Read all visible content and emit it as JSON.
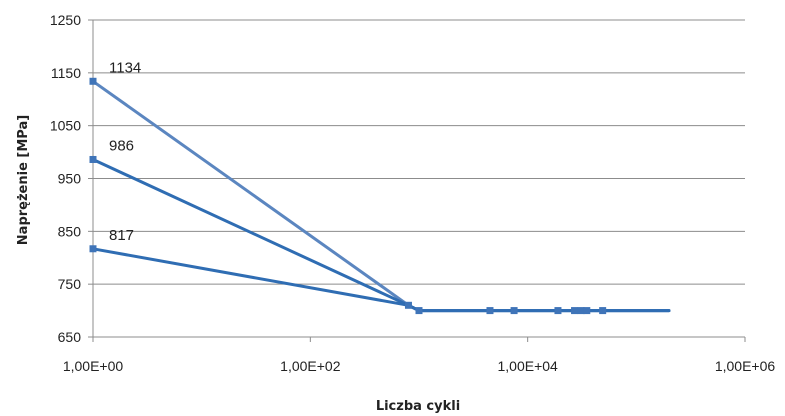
{
  "chart_data": {
    "type": "line",
    "title": "",
    "xlabel": "Liczba cykli",
    "ylabel": "Naprężenie [MPa]",
    "xscale": "log",
    "xlim": [
      1,
      1000000
    ],
    "ylim": [
      650,
      1250
    ],
    "xticks": [
      1,
      100,
      10000,
      1000000
    ],
    "xtick_labels": [
      "1,00E+00",
      "1,00E+02",
      "1,00E+04",
      "1,00E+06"
    ],
    "yticks": [
      650,
      750,
      850,
      950,
      1050,
      1150,
      1250
    ],
    "ytick_labels": [
      "650",
      "750",
      "850",
      "950",
      "1050",
      "1150",
      "1250"
    ],
    "grid": "horizontal",
    "legend": "none",
    "series": [
      {
        "color": "#5b86c0",
        "points": [
          [
            1,
            1134
          ],
          [
            800,
            710
          ],
          [
            1000,
            700
          ],
          [
            200000,
            700
          ]
        ],
        "label": "1134"
      },
      {
        "color": "#2f6db3",
        "points": [
          [
            1,
            986
          ],
          [
            800,
            710
          ],
          [
            1000,
            700
          ],
          [
            200000,
            700
          ]
        ],
        "label": "986"
      },
      {
        "color": "#2f6db3",
        "points": [
          [
            1,
            817
          ],
          [
            800,
            710
          ],
          [
            1000,
            700
          ],
          [
            200000,
            700
          ]
        ],
        "label": "817"
      }
    ],
    "markers": [
      [
        1,
        1134
      ],
      [
        1,
        986
      ],
      [
        1,
        817
      ],
      [
        800,
        710
      ],
      [
        1000,
        700
      ],
      [
        4500,
        700
      ],
      [
        7500,
        700
      ],
      [
        19000,
        700
      ],
      [
        27000,
        700
      ],
      [
        31000,
        700
      ],
      [
        35000,
        700
      ],
      [
        49000,
        700
      ]
    ]
  }
}
